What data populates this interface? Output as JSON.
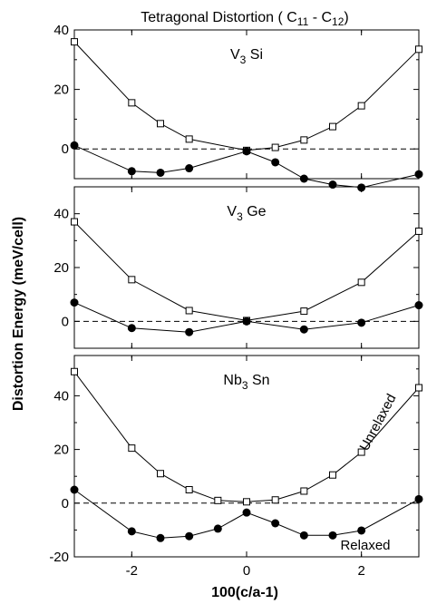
{
  "chart_data": {
    "type": "line",
    "title": "Tetragonal Distortion ( C",
    "title_sub1": "11",
    "title_sep": " - C",
    "title_sub2": "12",
    "title_end": ")",
    "xlabel": "100(c/a-1)",
    "ylabel": "Distortion Energy (meV/cell)",
    "xlim": [
      -3,
      3
    ],
    "x_ticks": [
      -2,
      0,
      2
    ],
    "x_tick_labels": [
      "-2",
      "0",
      "2"
    ],
    "reference_line": 0,
    "panels": [
      {
        "label_main": "V",
        "label_sub": "3",
        "label_end": "Si",
        "ylim": [
          -10,
          40
        ],
        "y_ticks": [
          0,
          20,
          40
        ],
        "y_tick_labels": [
          "0",
          "20",
          "40"
        ],
        "series": [
          {
            "name": "Unrelaxed",
            "marker": "open-square",
            "x": [
              -3,
              -2,
              -1.5,
              -1,
              0,
              0.5,
              1,
              1.5,
              2,
              3
            ],
            "y": [
              36,
              15.5,
              8.5,
              3.3,
              -0.5,
              0.5,
              3,
              7.5,
              14.5,
              33.5
            ]
          },
          {
            "name": "Relaxed",
            "marker": "filled-circle",
            "x": [
              -3,
              -2,
              -1.5,
              -1,
              0,
              0.5,
              1,
              1.5,
              2,
              3
            ],
            "y": [
              1.2,
              -7.5,
              -8,
              -6.5,
              -0.8,
              -4.5,
              -10,
              -12,
              -13,
              -8.5
            ]
          }
        ]
      },
      {
        "label_main": "V",
        "label_sub": "3",
        "label_end": "Ge",
        "ylim": [
          -10,
          50
        ],
        "y_ticks": [
          0,
          20,
          40
        ],
        "y_tick_labels": [
          "0",
          "20",
          "40"
        ],
        "series": [
          {
            "name": "Unrelaxed",
            "marker": "open-square",
            "x": [
              -3,
              -2,
              -1,
              0,
              1,
              2,
              3
            ],
            "y": [
              37,
              15.5,
              4,
              0.3,
              3.8,
              14.5,
              33.5
            ]
          },
          {
            "name": "Relaxed",
            "marker": "filled-circle",
            "x": [
              -3,
              -2,
              -1,
              0,
              1,
              2,
              3
            ],
            "y": [
              7,
              -2.5,
              -4,
              0,
              -3,
              -0.5,
              6
            ]
          }
        ]
      },
      {
        "label_main": "Nb",
        "label_sub": "3",
        "label_end": "Sn",
        "ylim": [
          -20,
          55
        ],
        "y_ticks": [
          -20,
          0,
          20,
          40
        ],
        "y_tick_labels": [
          "-20",
          "0",
          "20",
          "40"
        ],
        "series": [
          {
            "name": "Unrelaxed",
            "marker": "open-square",
            "x": [
              -3,
              -2,
              -1.5,
              -1,
              -0.5,
              0,
              0.5,
              1,
              1.5,
              2,
              3
            ],
            "y": [
              49,
              20.5,
              11,
              5,
              1,
              0.5,
              1.2,
              4.5,
              10.5,
              19,
              43
            ]
          },
          {
            "name": "Relaxed",
            "marker": "filled-circle",
            "x": [
              -3,
              -2,
              -1.5,
              -1,
              -0.5,
              0,
              0.5,
              1,
              1.5,
              2,
              3
            ],
            "y": [
              5,
              -10.5,
              -13,
              -12.3,
              -9.5,
              -3.5,
              -7.5,
              -12,
              -12,
              -10.2,
              1.5
            ]
          }
        ]
      }
    ],
    "annotations": [
      "Unrelaxed",
      "Relaxed"
    ]
  }
}
